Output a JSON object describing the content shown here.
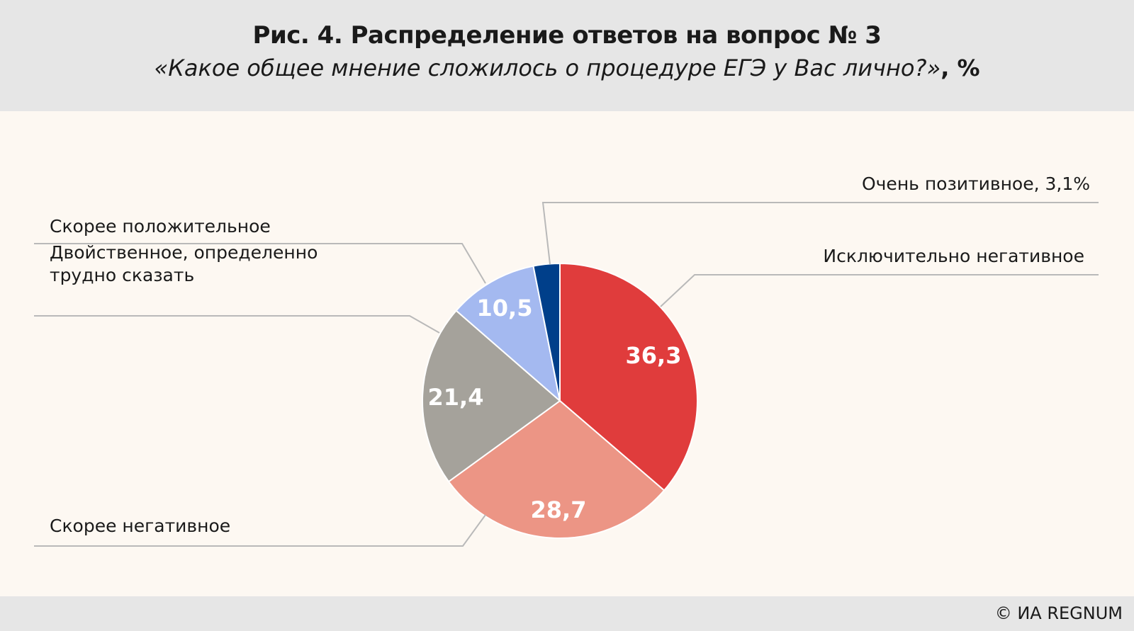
{
  "title": "Рис. 4. Распределение ответов на вопрос № 3",
  "subtitle_question": "«Какое общее мнение сложилось о процедуре ЕГЭ у Вас лично?»",
  "subtitle_unit": ", %",
  "credit": "© ИА REGNUM",
  "chart_data": {
    "type": "pie",
    "title": "Рис. 4. Распределение ответов на вопрос № 3",
    "subtitle": "«Какое общее мнение сложилось о процедуре ЕГЭ у Вас лично?», %",
    "start": "12 o'clock, clockwise",
    "slices": [
      {
        "label": "Исключительно негативное",
        "value": 36.3,
        "value_text": "36,3",
        "color": "#e03c3c",
        "label_lines": [
          "Исключительно негативное"
        ]
      },
      {
        "label": "Скорее негативное",
        "value": 28.7,
        "value_text": "28,7",
        "color": "#ec9585",
        "label_lines": [
          "Скорее негативное"
        ]
      },
      {
        "label": "Двойственное, определенно трудно сказать",
        "value": 21.4,
        "value_text": "21,4",
        "color": "#a5a29b",
        "label_lines": [
          "Двойственное, определенно",
          "трудно сказать"
        ]
      },
      {
        "label": "Скорее положительное",
        "value": 10.5,
        "value_text": "10,5",
        "color": "#a4b9f0",
        "label_lines": [
          "Скорее положительное"
        ]
      },
      {
        "label": "Очень позитивное",
        "value": 3.1,
        "value_text": "",
        "color": "#003f8a",
        "label_lines": [
          "Очень позитивное, 3,1%"
        ]
      }
    ]
  }
}
